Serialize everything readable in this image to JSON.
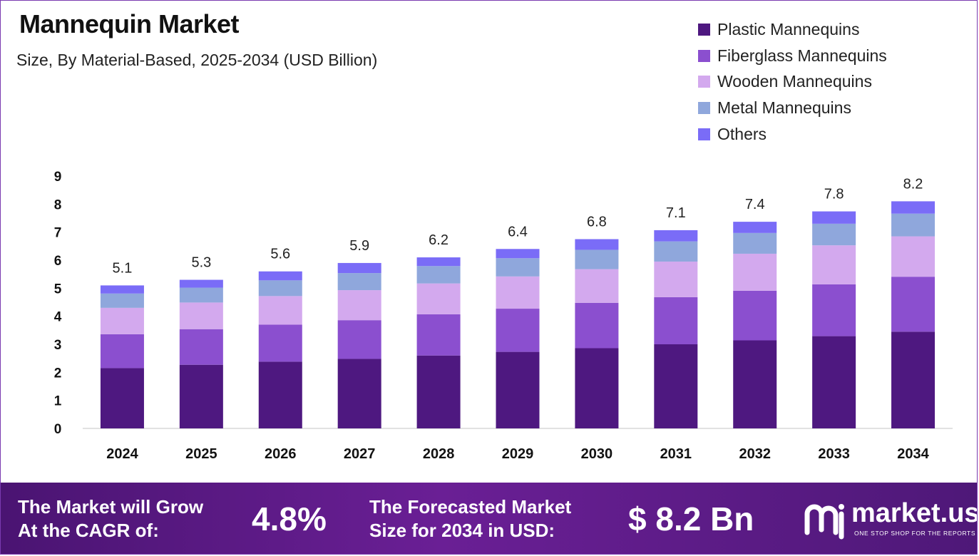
{
  "header": {
    "title": "Mannequin Market",
    "subtitle": "Size, By Material-Based, 2025-2034 (USD Billion)"
  },
  "colors": {
    "plastic": "#4e1880",
    "fiberglass": "#8b4fcf",
    "wooden": "#d3a9ee",
    "metal": "#8fa7dc",
    "others": "#7a6cf7",
    "banner": "#5c1a88"
  },
  "chart_data": {
    "type": "bar",
    "stacked": true,
    "categories": [
      "2024",
      "2025",
      "2026",
      "2027",
      "2028",
      "2029",
      "2030",
      "2031",
      "2032",
      "2033",
      "2034"
    ],
    "series": [
      {
        "name": "Plastic Mannequins",
        "values": [
          2.15,
          2.27,
          2.38,
          2.48,
          2.6,
          2.73,
          2.86,
          3.0,
          3.14,
          3.29,
          3.45
        ]
      },
      {
        "name": "Fiberglass Mannequins",
        "values": [
          1.21,
          1.27,
          1.32,
          1.38,
          1.47,
          1.54,
          1.62,
          1.68,
          1.77,
          1.85,
          1.96
        ]
      },
      {
        "name": "Wooden Mannequins",
        "values": [
          0.94,
          0.95,
          1.02,
          1.07,
          1.1,
          1.15,
          1.2,
          1.27,
          1.32,
          1.39,
          1.44
        ]
      },
      {
        "name": "Metal Mannequins",
        "values": [
          0.51,
          0.53,
          0.56,
          0.61,
          0.62,
          0.65,
          0.69,
          0.72,
          0.74,
          0.77,
          0.81
        ]
      },
      {
        "name": "Others",
        "values": [
          0.29,
          0.28,
          0.32,
          0.36,
          0.31,
          0.33,
          0.38,
          0.4,
          0.4,
          0.44,
          0.44
        ]
      }
    ],
    "totals": [
      "5.1",
      "5.3",
      "5.6",
      "5.9",
      "6.2",
      "6.4",
      "6.8",
      "7.1",
      "7.4",
      "7.8",
      "8.2"
    ],
    "yticks": [
      "0",
      "1",
      "2",
      "3",
      "4",
      "5",
      "6",
      "7",
      "8",
      "9"
    ],
    "ylim": [
      0,
      9
    ],
    "grid": false,
    "legend_position": "top-right"
  },
  "banner": {
    "cagr_label_line1": "The Market will Grow",
    "cagr_label_line2": "At the CAGR of:",
    "cagr_value": "4.8%",
    "forecast_label_line1": "The Forecasted Market",
    "forecast_label_line2": "Size for 2034 in USD:",
    "forecast_value": "$ 8.2 Bn",
    "logo_name": "market.us",
    "logo_tagline": "ONE STOP SHOP FOR THE REPORTS"
  }
}
